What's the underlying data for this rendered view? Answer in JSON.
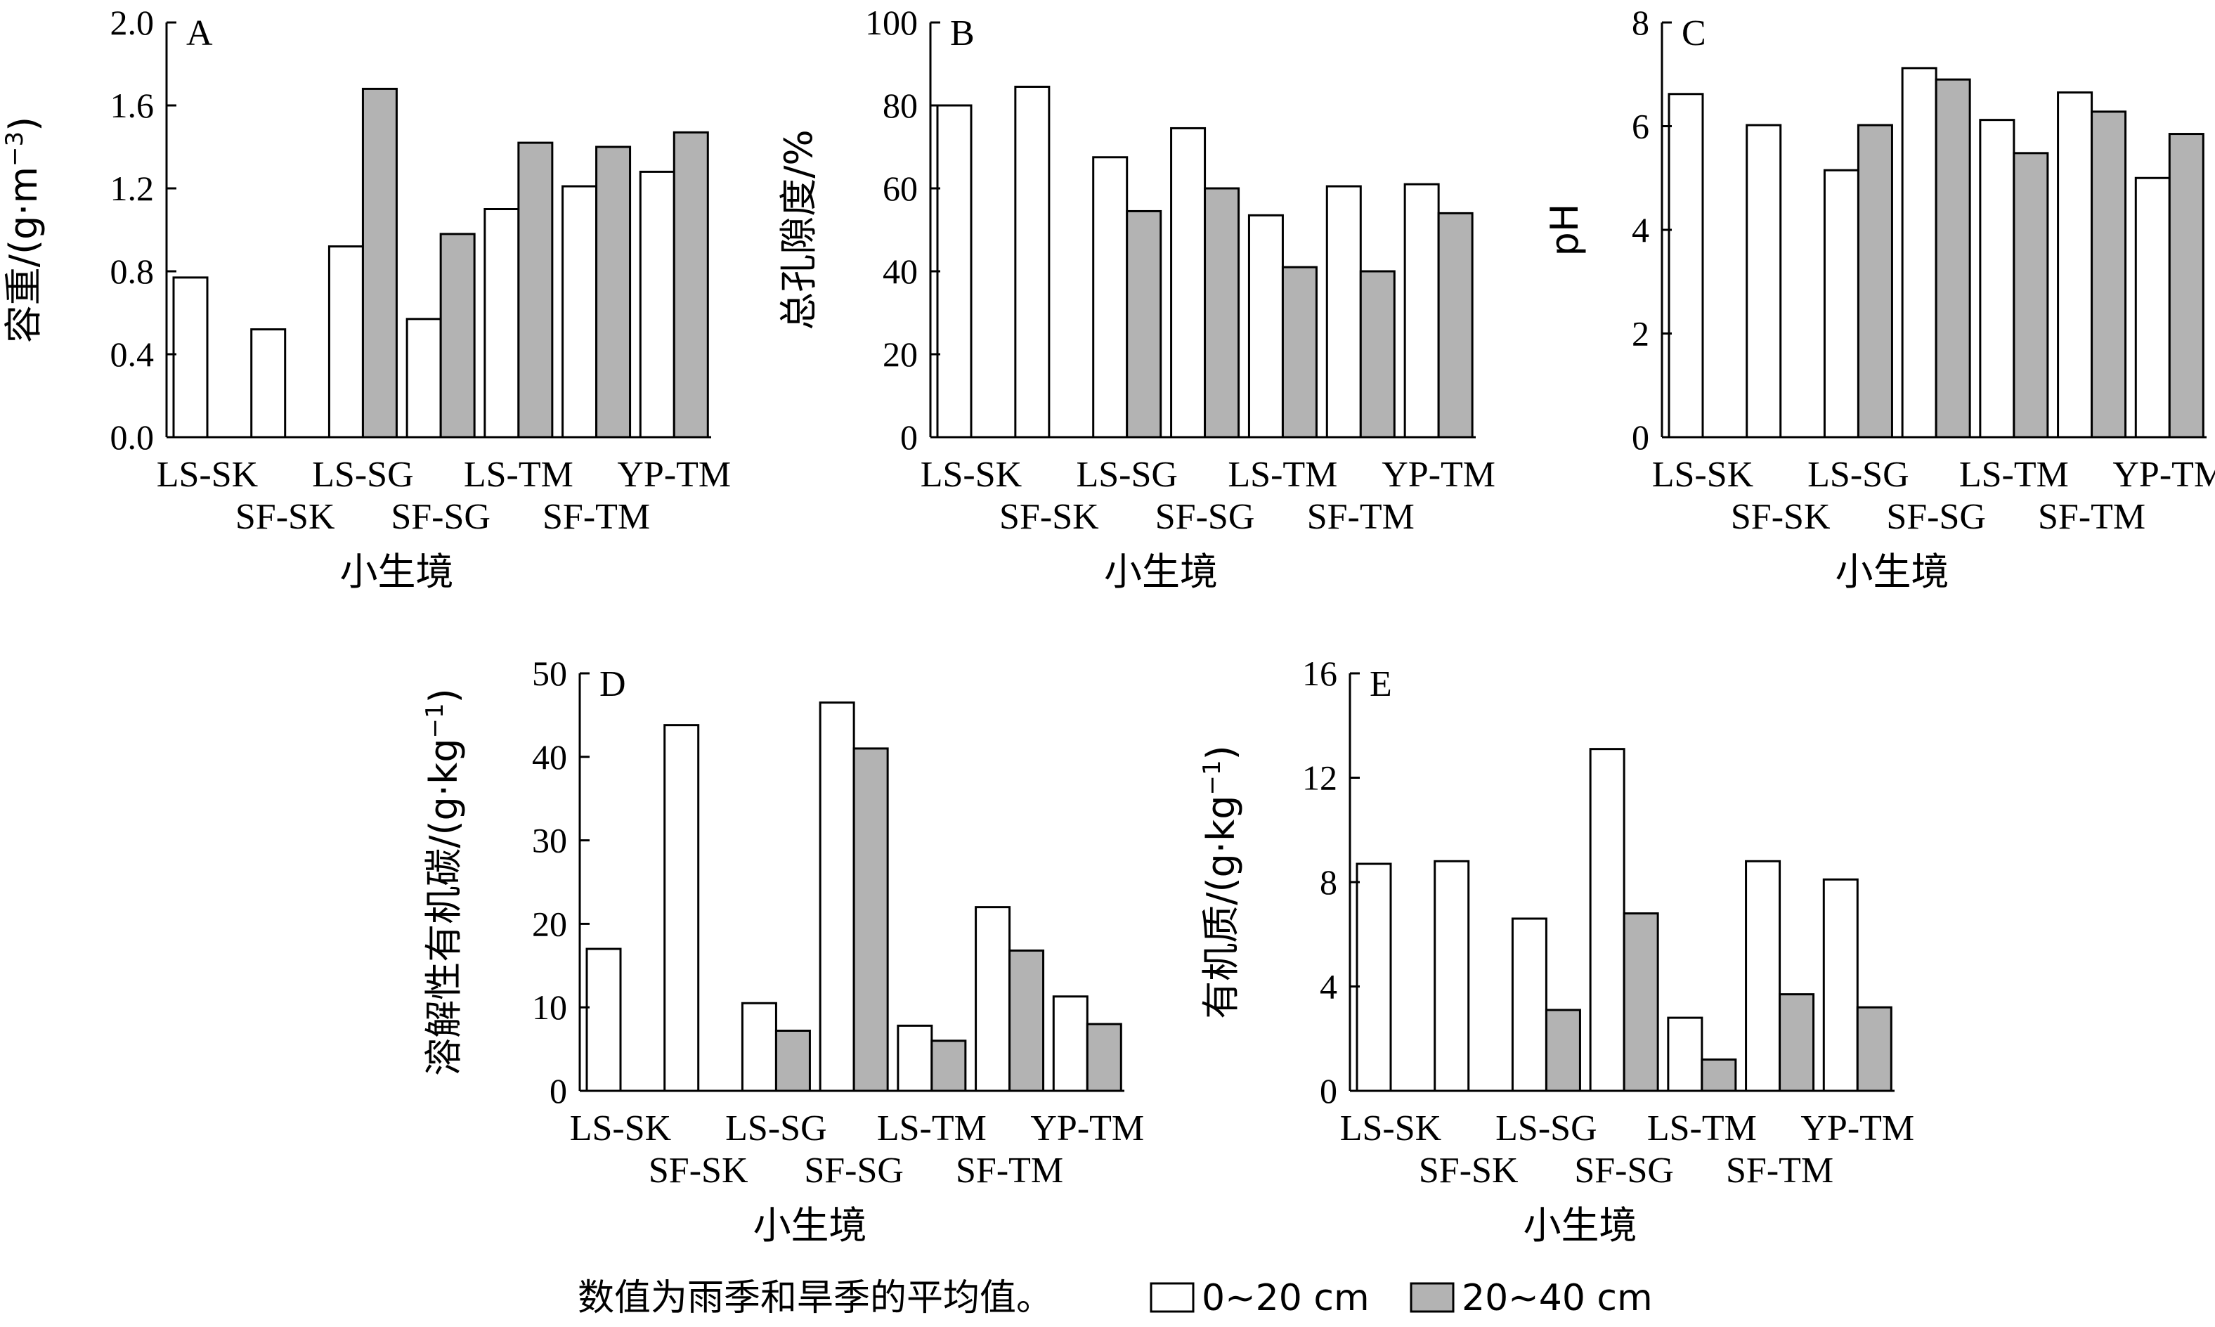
{
  "colors": {
    "series0": "#ffffff",
    "series1": "#b3b3b3",
    "stroke": "#000000"
  },
  "legend": {
    "note": "数值为雨季和旱季的平均值。",
    "items": [
      "0~20 cm",
      "20~40 cm"
    ]
  },
  "chart_data": [
    {
      "type": "bar",
      "panel": "A",
      "ylabel_prefix": "容重/(g·m",
      "ylabel_sup": "−3",
      "ylabel_suffix": ")",
      "xlabel": "小生境",
      "categories": [
        "LS-SK",
        "SF-SK",
        "LS-SG",
        "SF-SG",
        "LS-TM",
        "SF-TM",
        "YP-TM"
      ],
      "yticks": [
        "0.0",
        "0.4",
        "0.8",
        "1.2",
        "1.6",
        "2.0"
      ],
      "ylim": [
        0,
        2.0
      ],
      "series": [
        {
          "name": "0~20 cm",
          "values": [
            0.77,
            0.52,
            0.92,
            0.57,
            1.1,
            1.21,
            1.28
          ]
        },
        {
          "name": "20~40 cm",
          "values": [
            null,
            null,
            1.68,
            0.98,
            1.42,
            1.4,
            1.47
          ]
        }
      ]
    },
    {
      "type": "bar",
      "panel": "B",
      "ylabel_prefix": "总孔隙度/%",
      "ylabel_sup": "",
      "ylabel_suffix": "",
      "xlabel": "小生境",
      "categories": [
        "LS-SK",
        "SF-SK",
        "LS-SG",
        "SF-SG",
        "LS-TM",
        "SF-TM",
        "YP-TM"
      ],
      "yticks": [
        "0",
        "20",
        "40",
        "60",
        "80",
        "100"
      ],
      "ylim": [
        0,
        100
      ],
      "series": [
        {
          "name": "0~20 cm",
          "values": [
            80,
            84.5,
            67.5,
            74.5,
            53.5,
            60.5,
            61
          ]
        },
        {
          "name": "20~40 cm",
          "values": [
            null,
            null,
            54.5,
            60,
            41,
            40,
            54
          ]
        }
      ]
    },
    {
      "type": "bar",
      "panel": "C",
      "ylabel_prefix": "pH",
      "ylabel_sup": "",
      "ylabel_suffix": "",
      "xlabel": "小生境",
      "categories": [
        "LS-SK",
        "SF-SK",
        "LS-SG",
        "SF-SG",
        "LS-TM",
        "SF-TM",
        "YP-TM"
      ],
      "yticks": [
        "0",
        "2",
        "4",
        "6",
        "8"
      ],
      "ylim": [
        0,
        8
      ],
      "series": [
        {
          "name": "0~20 cm",
          "values": [
            6.62,
            6.02,
            5.15,
            7.12,
            6.12,
            6.65,
            5.0
          ]
        },
        {
          "name": "20~40 cm",
          "values": [
            null,
            null,
            6.02,
            6.9,
            5.48,
            6.28,
            5.85
          ]
        }
      ]
    },
    {
      "type": "bar",
      "panel": "D",
      "ylabel_prefix": "溶解性有机碳/(g·kg",
      "ylabel_sup": "−1",
      "ylabel_suffix": ")",
      "xlabel": "小生境",
      "categories": [
        "LS-SK",
        "SF-SK",
        "LS-SG",
        "SF-SG",
        "LS-TM",
        "SF-TM",
        "YP-TM"
      ],
      "yticks": [
        "0",
        "10",
        "20",
        "30",
        "40",
        "50"
      ],
      "ylim": [
        0,
        50
      ],
      "series": [
        {
          "name": "0~20 cm",
          "values": [
            17,
            43.8,
            10.5,
            46.5,
            7.8,
            22,
            11.3
          ]
        },
        {
          "name": "20~40 cm",
          "values": [
            null,
            null,
            7.2,
            41,
            6,
            16.8,
            8
          ]
        }
      ]
    },
    {
      "type": "bar",
      "panel": "E",
      "ylabel_prefix": "有机质/(g·kg",
      "ylabel_sup": "−1",
      "ylabel_suffix": ")",
      "xlabel": "小生境",
      "categories": [
        "LS-SK",
        "SF-SK",
        "LS-SG",
        "SF-SG",
        "LS-TM",
        "SF-TM",
        "YP-TM"
      ],
      "yticks": [
        "0",
        "4",
        "8",
        "12",
        "16"
      ],
      "ylim": [
        0,
        16
      ],
      "series": [
        {
          "name": "0~20 cm",
          "values": [
            8.7,
            8.8,
            6.6,
            13.1,
            2.8,
            8.8,
            8.1
          ]
        },
        {
          "name": "20~40 cm",
          "values": [
            null,
            null,
            3.1,
            6.8,
            1.2,
            3.7,
            3.2
          ]
        }
      ]
    }
  ]
}
